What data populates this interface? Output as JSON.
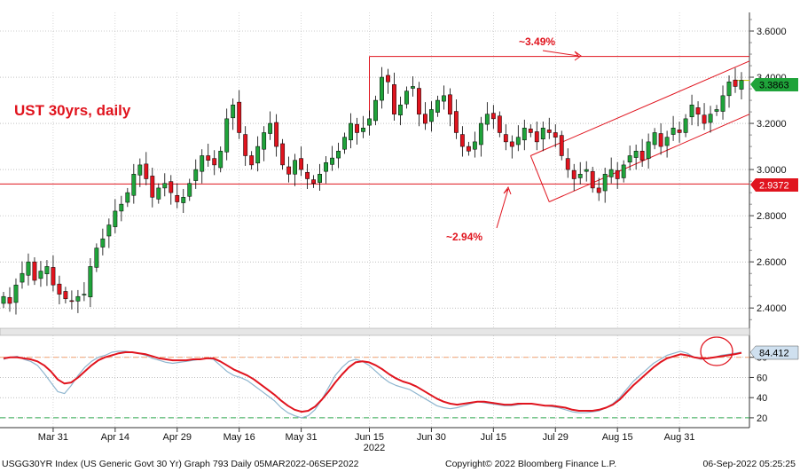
{
  "chart_data": [
    {
      "type": "candlestick",
      "title": "UST 30yrs, daily",
      "ylim": [
        2.32,
        3.65
      ],
      "y_ticks": [
        "2.4000",
        "2.6000",
        "2.8000",
        "3.0000",
        "3.2000",
        "3.4000",
        "3.6000"
      ],
      "x_ticks": [
        "Mar 31",
        "Apr 14",
        "Apr 29",
        "May 16",
        "May 31",
        "Jun 15",
        "Jun 30",
        "Jul 15",
        "Jul 29",
        "Aug 15",
        "Aug 31"
      ],
      "year_label": "2022",
      "last_price_label": "3.3863",
      "last_price": 3.3863,
      "support_label": "2.9372",
      "support": 2.9372,
      "colors": {
        "up": "#1fa33a",
        "down": "#e0141e",
        "annotation": "#e0141e"
      },
      "annotations": [
        "~3.49%",
        "~2.94%"
      ],
      "closes": [
        2.45,
        2.42,
        2.5,
        2.55,
        2.6,
        2.52,
        2.56,
        2.58,
        2.5,
        2.46,
        2.44,
        2.43,
        2.45,
        2.46,
        2.58,
        2.66,
        2.7,
        2.76,
        2.82,
        2.85,
        2.9,
        2.98,
        3.02,
        2.96,
        2.88,
        2.92,
        2.94,
        2.9,
        2.86,
        2.88,
        2.94,
        3.0,
        3.06,
        3.04,
        3.02,
        3.08,
        3.22,
        3.28,
        3.16,
        3.06,
        3.02,
        3.1,
        3.16,
        3.2,
        3.1,
        3.02,
        2.98,
        3.04,
        3.0,
        2.96,
        2.94,
        2.98,
        3.03,
        3.05,
        3.08,
        3.14,
        3.2,
        3.16,
        3.18,
        3.22,
        3.3,
        3.4,
        3.38,
        3.24,
        3.28,
        3.34,
        3.36,
        3.24,
        3.2,
        3.26,
        3.3,
        3.32,
        3.24,
        3.16,
        3.1,
        3.08,
        3.12,
        3.2,
        3.24,
        3.22,
        3.16,
        3.12,
        3.1,
        3.14,
        3.18,
        3.16,
        3.12,
        3.18,
        3.16,
        3.14,
        3.06,
        3.0,
        2.96,
        2.98,
        3.0,
        2.92,
        2.9,
        2.98,
        3.0,
        2.96,
        3.02,
        3.06,
        3.08,
        3.04,
        3.12,
        3.16,
        3.1,
        3.14,
        3.18,
        3.16,
        3.22,
        3.28,
        3.24,
        3.2,
        3.24,
        3.26,
        3.32,
        3.38,
        3.36,
        3.3863
      ]
    },
    {
      "type": "line",
      "y_ticks": [
        "20",
        "40",
        "60",
        "80"
      ],
      "ylim": [
        12,
        100
      ],
      "guide_lines": [
        80,
        20
      ],
      "last_value_label": "84.412",
      "series": [
        {
          "values": [
            78,
            80,
            81,
            78,
            76,
            72,
            64,
            55,
            46,
            44,
            52,
            62,
            70,
            76,
            80,
            82,
            85,
            86,
            86,
            85,
            84,
            82,
            79,
            77,
            75,
            74,
            75,
            76,
            77,
            78,
            79,
            78,
            72,
            66,
            62,
            60,
            57,
            52,
            47,
            42,
            37,
            30,
            25,
            22,
            20,
            22,
            28,
            38,
            50,
            62,
            70,
            76,
            78,
            76,
            72,
            66,
            60,
            55,
            52,
            50,
            48,
            44,
            40,
            36,
            32,
            30,
            29,
            30,
            32,
            34,
            36,
            35,
            34,
            33,
            32,
            32,
            33,
            34,
            34,
            33,
            32,
            31,
            30,
            28,
            26,
            25,
            25,
            26,
            27,
            30,
            34,
            40,
            48,
            56,
            62,
            68,
            74,
            78,
            82,
            84,
            86,
            84,
            80,
            78,
            79,
            80,
            82,
            83,
            84,
            85
          ]
        },
        {
          "values": [
            79,
            80,
            80,
            79,
            78,
            76,
            72,
            66,
            58,
            54,
            55,
            60,
            66,
            72,
            77,
            80,
            82,
            84,
            85,
            85,
            84,
            83,
            81,
            79,
            78,
            77,
            77,
            77,
            78,
            78,
            79,
            79,
            76,
            72,
            68,
            65,
            62,
            58,
            53,
            48,
            43,
            37,
            32,
            28,
            26,
            27,
            31,
            38,
            46,
            55,
            63,
            70,
            75,
            76,
            75,
            72,
            68,
            63,
            59,
            56,
            54,
            51,
            47,
            43,
            39,
            36,
            34,
            33,
            34,
            35,
            36,
            36,
            35,
            34,
            33,
            33,
            34,
            34,
            34,
            33,
            32,
            32,
            31,
            30,
            28,
            27,
            27,
            27,
            28,
            30,
            33,
            38,
            45,
            52,
            58,
            64,
            70,
            75,
            79,
            81,
            83,
            82,
            80,
            79,
            79,
            80,
            81,
            82,
            83,
            84.412
          ]
        }
      ]
    }
  ],
  "x_ticks_shared": [
    "Mar 31",
    "Apr 14",
    "Apr 29",
    "May 16",
    "May 31",
    "Jun 15",
    "Jun 30",
    "Jul 15",
    "Jul 29",
    "Aug 15",
    "Aug 31"
  ],
  "footer": {
    "left": "USGG30YR Index (US Generic Govt 30 Yr) Graph 793  Daily 05MAR2022-06SEP2022",
    "center": "Copyright© 2022 Bloomberg Finance L.P.",
    "right": "06-Sep-2022 05:25:25"
  }
}
